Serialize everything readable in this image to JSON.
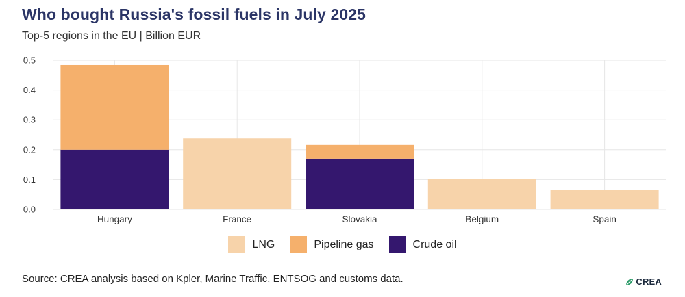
{
  "title": "Who bought Russia's fossil fuels in July 2025",
  "subtitle": "Top-5 regions in the EU | Billion EUR",
  "source": "Source: CREA analysis based on Kpler, Marine Traffic, ENTSOG and customs data.",
  "logo": {
    "text": "CREA",
    "icon": "crea-leaf-icon"
  },
  "colors": {
    "title": "#2b3566",
    "LNG": "#f7d3aa",
    "Pipeline gas": "#f5b06c",
    "Crude oil": "#34176e",
    "grid": "#e6e6e6"
  },
  "chart_data": {
    "type": "bar",
    "stacked": true,
    "title": "Who bought Russia's fossil fuels in July 2025",
    "subtitle": "Top-5 regions in the EU | Billion EUR",
    "xlabel": "",
    "ylabel": "",
    "categories": [
      "Hungary",
      "France",
      "Slovakia",
      "Belgium",
      "Spain"
    ],
    "series": [
      {
        "name": "Crude oil",
        "values": [
          0.2,
          0,
          0.17,
          0,
          0
        ]
      },
      {
        "name": "Pipeline gas",
        "values": [
          0.284,
          0,
          0.046,
          0,
          0
        ]
      },
      {
        "name": "LNG",
        "values": [
          0,
          0.238,
          0,
          0.102,
          0.066
        ]
      }
    ],
    "legend_order": [
      "LNG",
      "Pipeline gas",
      "Crude oil"
    ],
    "ylim": [
      0,
      0.5
    ],
    "yticks": [
      "0.0",
      "0.1",
      "0.2",
      "0.3",
      "0.4",
      "0.5"
    ],
    "grid": true,
    "legend_position": "bottom"
  }
}
